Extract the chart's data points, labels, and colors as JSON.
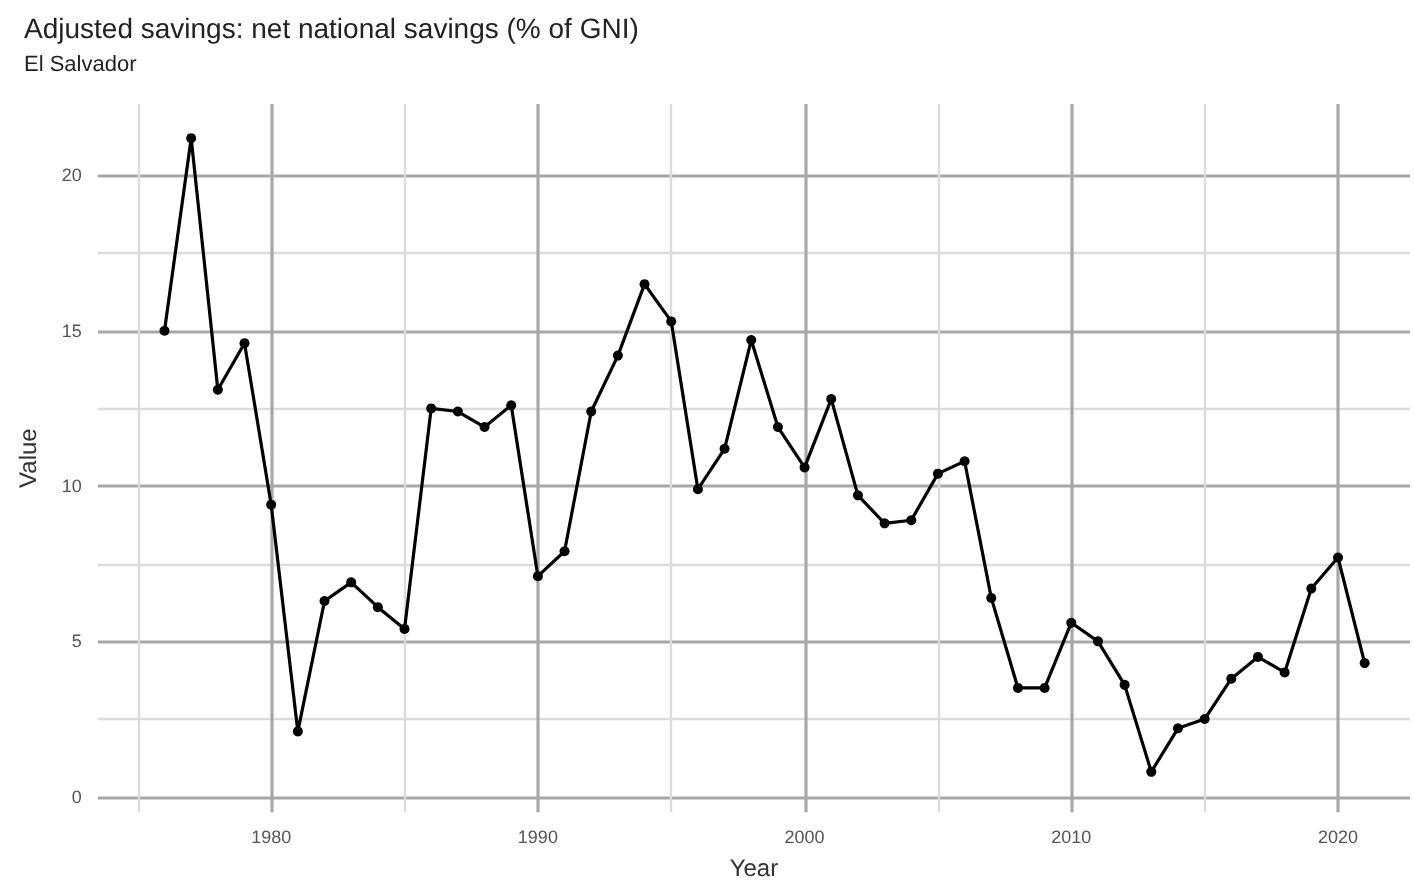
{
  "chart_data": {
    "type": "line",
    "title": "Adjusted savings: net national savings (% of GNI)",
    "subtitle": "El Salvador",
    "xlabel": "Year",
    "ylabel": "Value",
    "x": [
      1976,
      1977,
      1978,
      1979,
      1980,
      1981,
      1982,
      1983,
      1984,
      1985,
      1986,
      1987,
      1988,
      1989,
      1990,
      1991,
      1992,
      1993,
      1994,
      1995,
      1996,
      1997,
      1998,
      1999,
      2000,
      2001,
      2002,
      2003,
      2004,
      2005,
      2006,
      2007,
      2008,
      2009,
      2010,
      2011,
      2012,
      2013,
      2014,
      2015,
      2016,
      2017,
      2018,
      2019,
      2020,
      2021
    ],
    "series": [
      {
        "color": "#000000",
        "values": [
          15.0,
          21.2,
          13.1,
          14.6,
          9.4,
          2.1,
          6.3,
          6.9,
          6.1,
          5.4,
          12.5,
          12.4,
          11.9,
          12.6,
          7.1,
          7.9,
          12.4,
          14.2,
          16.5,
          15.3,
          9.9,
          11.2,
          14.7,
          11.9,
          10.6,
          12.8,
          9.7,
          8.8,
          8.9,
          10.4,
          10.8,
          6.4,
          3.5,
          3.5,
          5.6,
          5.0,
          3.6,
          0.8,
          2.2,
          2.5,
          3.8,
          4.5,
          4.0,
          6.7,
          7.7,
          4.3
        ]
      }
    ],
    "xlim": [
      1973.5,
      2022.7
    ],
    "xticks": [
      1980,
      1990,
      2000,
      2010,
      2020
    ],
    "ylim": [
      -0.5,
      22.3
    ],
    "yticks": [
      0,
      5,
      10,
      15,
      20
    ],
    "grid": true,
    "marker": "circle",
    "line_style": "solid"
  }
}
